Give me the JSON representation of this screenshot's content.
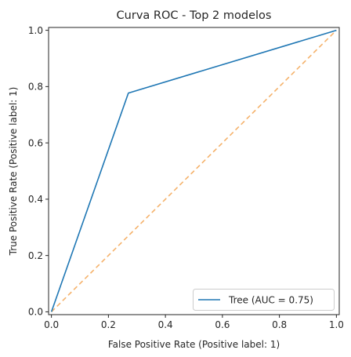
{
  "chart_data": {
    "type": "line",
    "title": "Curva ROC - Top 2 modelos",
    "xlabel": "False Positive Rate (Positive label: 1)",
    "ylabel": "True Positive Rate (Positive label: 1)",
    "xlim": [
      -0.01,
      1.01
    ],
    "ylim": [
      -0.01,
      1.01
    ],
    "xticks": [
      0.0,
      0.2,
      0.4,
      0.6,
      0.8,
      1.0
    ],
    "yticks": [
      0.0,
      0.2,
      0.4,
      0.6,
      0.8,
      1.0
    ],
    "xtick_labels": [
      "0.0",
      "0.2",
      "0.4",
      "0.6",
      "0.8",
      "1.0"
    ],
    "ytick_labels": [
      "0.0",
      "0.2",
      "0.4",
      "0.6",
      "0.8",
      "1.0"
    ],
    "grid": false,
    "legend_position": "lower-right",
    "series": [
      {
        "name": "Tree (AUC = 0.75)",
        "x": [
          0.0,
          0.27,
          1.0
        ],
        "y": [
          0.0,
          0.777,
          1.0
        ],
        "color": "#1f77b4",
        "style": "solid"
      }
    ],
    "reference_line": {
      "x": [
        0.0,
        1.0
      ],
      "y": [
        0.0,
        1.0
      ],
      "color": "#f5b26b",
      "style": "dashed"
    }
  }
}
